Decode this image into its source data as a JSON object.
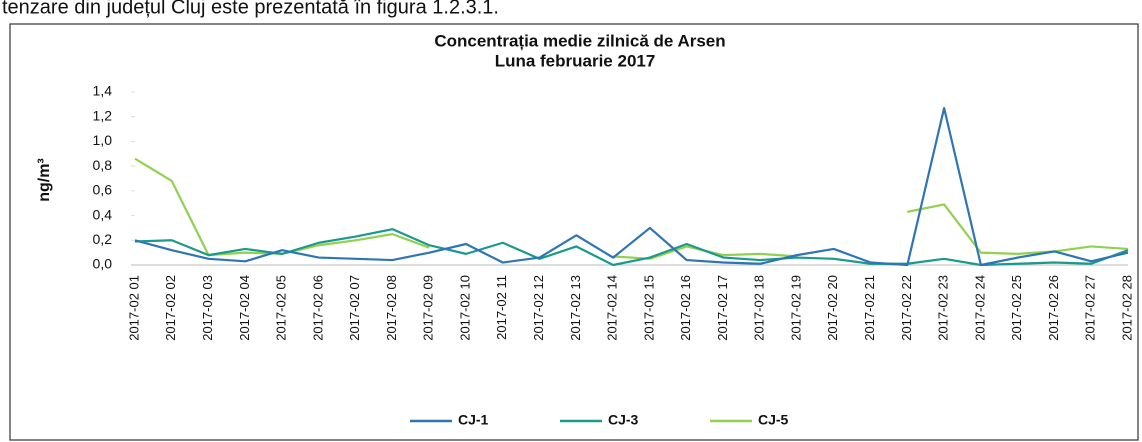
{
  "header_text": "tenzare din județul Cluj este prezentată în figura 1.2.3.1.",
  "chart_data": {
    "type": "line",
    "title": "Concentrația medie zilnică de Arsen",
    "subtitle": "Luna februarie 2017",
    "y_label": "ng/m³",
    "categories": [
      "2017-02 01",
      "2017-02 02",
      "2017-02 03",
      "2017-02 04",
      "2017-02 05",
      "2017-02 06",
      "2017-02 07",
      "2017-02 08",
      "2017-02 09",
      "2017-02 10",
      "2017-02 11",
      "2017-02 12",
      "2017-02 13",
      "2017-02 14",
      "2017-02 15",
      "2017-02 16",
      "2017-02 17",
      "2017-02 18",
      "2017-02 19",
      "2017-02 20",
      "2017-02 21",
      "2017-02 22",
      "2017-02 23",
      "2017-02 24",
      "2017-02 25",
      "2017-02 26",
      "2017-02 27",
      "2017-02 28"
    ],
    "series": [
      {
        "name": "CJ-1",
        "color": "#2e75b6",
        "values": [
          0.2,
          0.12,
          0.05,
          0.03,
          0.12,
          0.06,
          0.05,
          0.04,
          0.1,
          0.17,
          0.02,
          0.06,
          0.24,
          0.06,
          0.3,
          0.04,
          0.02,
          0.01,
          0.08,
          0.13,
          0.02,
          0.0,
          1.27,
          0.0,
          0.06,
          0.11,
          0.03,
          0.1
        ]
      },
      {
        "name": "CJ-3",
        "color": "#1a9a8a",
        "values": [
          0.19,
          0.2,
          0.08,
          0.13,
          0.09,
          0.18,
          0.23,
          0.29,
          0.16,
          0.09,
          0.18,
          0.05,
          0.15,
          0.0,
          0.06,
          0.17,
          0.06,
          0.04,
          0.06,
          0.05,
          0.01,
          0.01,
          0.05,
          0.0,
          0.01,
          0.02,
          0.01,
          0.12
        ]
      },
      {
        "name": "CJ-5",
        "color": "#92d050",
        "values": [
          0.86,
          0.68,
          0.08,
          0.1,
          0.09,
          0.16,
          0.2,
          0.25,
          0.14,
          null,
          null,
          null,
          null,
          0.07,
          0.05,
          0.15,
          0.08,
          0.09,
          0.07,
          null,
          null,
          0.43,
          0.49,
          0.1,
          0.09,
          0.11,
          0.15,
          0.13
        ]
      }
    ],
    "ylim": [
      0,
      1.4
    ],
    "yticks": [
      {
        "value": 0,
        "label": "0,0"
      },
      {
        "value": 0.2,
        "label": "0,2"
      },
      {
        "value": 0.4,
        "label": "0,4"
      },
      {
        "value": 0.6,
        "label": "0,6"
      },
      {
        "value": 0.8,
        "label": "0,8"
      },
      {
        "value": 1.0,
        "label": "1,0"
      },
      {
        "value": 1.2,
        "label": "1,2"
      },
      {
        "value": 1.4,
        "label": "1,4"
      }
    ],
    "grid": false,
    "legend": "bottom"
  }
}
